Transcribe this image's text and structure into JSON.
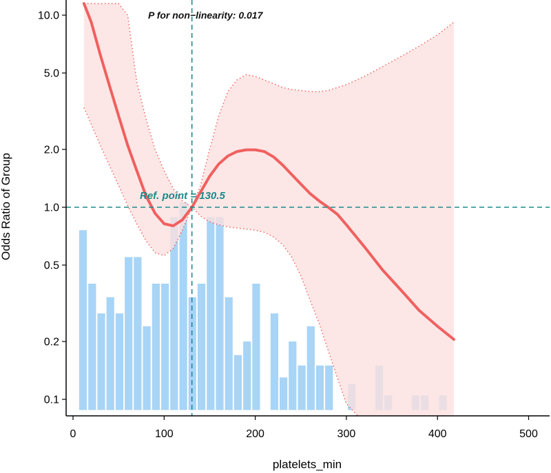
{
  "chart_data": {
    "type": "line",
    "xlabel": "platelets_min",
    "ylabel": "Odds Ratio of Group",
    "xlim": [
      -10,
      525
    ],
    "ylim": [
      0.075,
      11.2
    ],
    "y_scale": "log",
    "x_ticks": [
      0,
      100,
      200,
      300,
      400,
      500
    ],
    "x_tick_labels": [
      "0",
      "100",
      "200",
      "300",
      "400",
      "500"
    ],
    "y_ticks": [
      0.1,
      0.2,
      0.5,
      1.0,
      2.0,
      5.0,
      10.0
    ],
    "y_tick_labels": [
      "0.1",
      "0.2",
      "0.5",
      "1.0",
      "2.0",
      "5.0",
      "10.0"
    ],
    "reference_point": {
      "x": 130.5,
      "y": 1.0,
      "label": "Ref. point = 130.5"
    },
    "annotation": "P for non−linearity: 0.017",
    "colors": {
      "curve": "#f0605f",
      "ci_fill": "#fde0df",
      "ci_border": "#f0605f",
      "ref_line": "#1a8a8a",
      "hist_bar": "#a8d4f6",
      "hist_overlap": "#bac4e6",
      "axis": "#000000"
    },
    "series": [
      {
        "kind": "fit",
        "x": [
          12,
          20,
          30,
          40,
          50,
          60,
          70,
          80,
          90,
          100,
          110,
          120,
          130.5,
          140,
          150,
          160,
          170,
          180,
          190,
          200,
          210,
          220,
          230,
          240,
          250,
          260,
          270,
          280,
          290,
          300,
          320,
          340,
          360,
          380,
          400,
          418
        ],
        "y": [
          11.5,
          9.2,
          6.2,
          4.3,
          3.0,
          2.1,
          1.55,
          1.15,
          0.93,
          0.82,
          0.8,
          0.86,
          1.0,
          1.2,
          1.45,
          1.68,
          1.85,
          1.95,
          1.99,
          1.99,
          1.95,
          1.83,
          1.66,
          1.48,
          1.32,
          1.18,
          1.08,
          1.0,
          0.92,
          0.81,
          0.62,
          0.47,
          0.37,
          0.29,
          0.24,
          0.205
        ]
      },
      {
        "kind": "ci_upper",
        "x": [
          12,
          20,
          30,
          40,
          50,
          60,
          70,
          80,
          90,
          100,
          110,
          120,
          130.5,
          140,
          150,
          160,
          170,
          180,
          190,
          200,
          210,
          220,
          230,
          240,
          250,
          260,
          270,
          280,
          290,
          300,
          320,
          340,
          360,
          380,
          400,
          418
        ],
        "y": [
          11.5,
          11.5,
          11.5,
          11.5,
          11.5,
          10.0,
          4.5,
          2.9,
          2.0,
          1.55,
          1.25,
          1.08,
          1.0,
          1.3,
          2.0,
          3.0,
          4.0,
          4.6,
          4.9,
          4.8,
          4.6,
          4.4,
          4.2,
          4.1,
          4.05,
          4.0,
          4.0,
          4.05,
          4.2,
          4.35,
          4.8,
          5.4,
          6.1,
          6.9,
          7.9,
          9.2
        ]
      },
      {
        "kind": "ci_lower",
        "x": [
          12,
          20,
          30,
          40,
          50,
          60,
          70,
          80,
          90,
          100,
          110,
          120,
          130.5,
          140,
          150,
          160,
          170,
          180,
          190,
          200,
          210,
          220,
          230,
          240,
          250,
          260,
          270,
          280,
          290,
          300,
          320,
          340,
          360,
          380,
          400,
          418
        ],
        "y": [
          3.3,
          2.7,
          2.1,
          1.65,
          1.3,
          1.02,
          0.82,
          0.67,
          0.58,
          0.56,
          0.61,
          0.76,
          1.0,
          0.9,
          0.84,
          0.81,
          0.79,
          0.78,
          0.77,
          0.76,
          0.74,
          0.7,
          0.64,
          0.55,
          0.44,
          0.33,
          0.25,
          0.18,
          0.13,
          0.095,
          0.075,
          0.075,
          0.075,
          0.075,
          0.075,
          0.075
        ]
      }
    ],
    "histogram": {
      "bin_centers": [
        11,
        21,
        31,
        41,
        51,
        61,
        71,
        81,
        91,
        101,
        111,
        121,
        131,
        141,
        151,
        161,
        171,
        181,
        191,
        201,
        221,
        231,
        241,
        251,
        261,
        271,
        281,
        306,
        336,
        346,
        376,
        386,
        406
      ],
      "heights_or": [
        0.76,
        0.4,
        0.28,
        0.34,
        0.28,
        0.55,
        0.55,
        0.24,
        0.4,
        0.4,
        0.89,
        1.06,
        0.34,
        0.4,
        0.89,
        0.89,
        0.34,
        0.17,
        0.2,
        0.4,
        0.28,
        0.13,
        0.2,
        0.15,
        0.24,
        0.15,
        0.15,
        0.12,
        0.15,
        0.105,
        0.105,
        0.105,
        0.105
      ],
      "baseline_or": 0.088
    }
  }
}
